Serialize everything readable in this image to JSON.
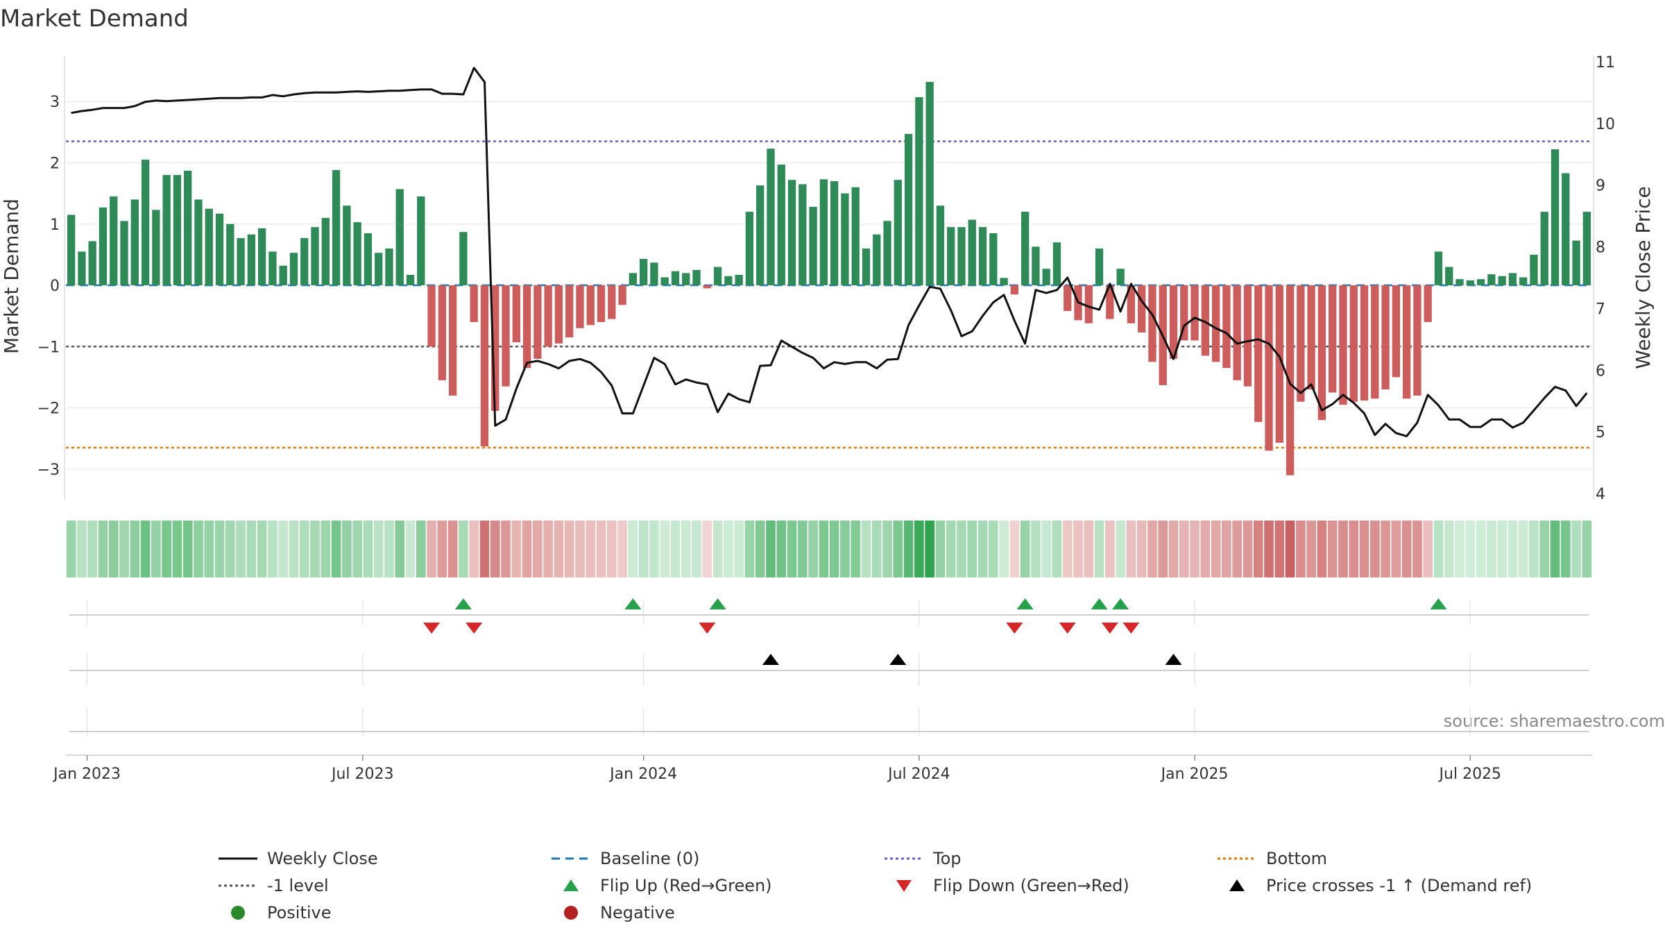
{
  "title": "Market Demand",
  "source": "source: sharemaestro.com",
  "colors": {
    "positive": "#2e8b57",
    "negative": "#cd5c5c",
    "line": "#111111",
    "baseline": "#1f77b4",
    "top": "#6a5acd",
    "bottom": "#e07b00",
    "minus_one": "#555555",
    "flip_up": "#27a04b",
    "flip_down": "#d62728",
    "cross": "#000000",
    "legend_positive": "#2a8a2a",
    "legend_negative": "#b22222",
    "grid": "#e6e6e6"
  },
  "chart_data": {
    "type": "bar+line",
    "title": "Market Demand",
    "ylabel": "Market Demand",
    "y2label": "Weekly Close Price",
    "ylim": [
      -3.5,
      3.75
    ],
    "y2lim": [
      3.9,
      11.1
    ],
    "yticks": [
      "3",
      "2",
      "1",
      "0",
      "−1",
      "−2",
      "−3"
    ],
    "y2ticks": [
      "11",
      "10",
      "9",
      "8",
      "7",
      "6",
      "5",
      "4"
    ],
    "x_ticks": [
      {
        "label": "Jan 2023",
        "week": 2
      },
      {
        "label": "Jul 2023",
        "week": 28
      },
      {
        "label": "Jan 2024",
        "week": 54.5
      },
      {
        "label": "Jul 2024",
        "week": 80.5
      },
      {
        "label": "Jan 2025",
        "week": 106.5
      },
      {
        "label": "Jul 2025",
        "week": 132.5
      }
    ],
    "reference_lines": {
      "top": 2.35,
      "bottom": -2.65,
      "minus_one": -1,
      "baseline": 0
    },
    "demand": [
      1.15,
      0.55,
      0.72,
      1.27,
      1.45,
      1.05,
      1.4,
      2.05,
      1.23,
      1.8,
      1.8,
      1.87,
      1.4,
      1.25,
      1.17,
      1.0,
      0.77,
      0.83,
      0.93,
      0.55,
      0.32,
      0.53,
      0.77,
      0.95,
      1.1,
      1.88,
      1.3,
      1.03,
      0.85,
      0.53,
      0.6,
      1.57,
      0.17,
      1.45,
      -1.0,
      -1.55,
      -1.8,
      0.87,
      -0.6,
      -2.63,
      -2.05,
      -1.65,
      -0.93,
      -1.35,
      -1.2,
      -1.0,
      -0.95,
      -0.85,
      -0.7,
      -0.65,
      -0.6,
      -0.55,
      -0.32,
      0.2,
      0.43,
      0.37,
      0.13,
      0.23,
      0.2,
      0.25,
      -0.05,
      0.3,
      0.15,
      0.17,
      1.2,
      1.63,
      2.23,
      1.97,
      1.72,
      1.65,
      1.28,
      1.73,
      1.7,
      1.5,
      1.6,
      0.6,
      0.83,
      1.05,
      1.72,
      2.47,
      3.07,
      3.32,
      1.3,
      0.95,
      0.95,
      1.07,
      0.95,
      0.85,
      0.12,
      -0.15,
      1.2,
      0.63,
      0.27,
      0.7,
      -0.42,
      -0.57,
      -0.62,
      0.6,
      -0.55,
      0.27,
      -0.62,
      -0.77,
      -1.25,
      -1.63,
      -1.2,
      -0.9,
      -0.9,
      -1.15,
      -1.25,
      -1.35,
      -1.55,
      -1.65,
      -2.23,
      -2.7,
      -2.57,
      -3.1,
      -1.9,
      -1.7,
      -2.2,
      -1.75,
      -1.95,
      -1.9,
      -1.88,
      -1.85,
      -1.7,
      -1.5,
      -1.85,
      -1.8,
      -0.6,
      0.55,
      0.3,
      0.1,
      0.08,
      0.1,
      0.18,
      0.15,
      0.2,
      0.13,
      0.5,
      1.2,
      2.22,
      1.83,
      0.73,
      1.2
    ],
    "weekly_close": [
      10.17,
      10.2,
      10.22,
      10.25,
      10.25,
      10.25,
      10.28,
      10.35,
      10.37,
      10.36,
      10.37,
      10.38,
      10.39,
      10.4,
      10.41,
      10.41,
      10.41,
      10.42,
      10.42,
      10.46,
      10.44,
      10.47,
      10.49,
      10.5,
      10.5,
      10.5,
      10.51,
      10.52,
      10.51,
      10.52,
      10.53,
      10.53,
      10.54,
      10.55,
      10.55,
      10.48,
      10.48,
      10.47,
      10.9,
      10.67,
      5.1,
      5.2,
      5.7,
      6.12,
      6.15,
      6.1,
      6.03,
      6.15,
      6.18,
      6.12,
      5.97,
      5.75,
      5.3,
      5.3,
      5.75,
      6.2,
      6.1,
      5.77,
      5.85,
      5.8,
      5.77,
      5.32,
      5.62,
      5.53,
      5.48,
      6.07,
      6.08,
      6.48,
      6.38,
      6.28,
      6.2,
      6.03,
      6.13,
      6.1,
      6.13,
      6.13,
      6.03,
      6.17,
      6.18,
      6.73,
      7.05,
      7.35,
      7.32,
      6.97,
      6.55,
      6.63,
      6.88,
      7.1,
      7.22,
      6.8,
      6.43,
      7.3,
      7.25,
      7.3,
      7.5,
      7.1,
      7.03,
      6.98,
      7.4,
      6.95,
      7.4,
      7.12,
      6.9,
      6.55,
      6.18,
      6.72,
      6.85,
      6.78,
      6.68,
      6.6,
      6.43,
      6.47,
      6.5,
      6.43,
      6.22,
      5.78,
      5.63,
      5.77,
      5.35,
      5.45,
      5.6,
      5.47,
      5.3,
      4.95,
      5.13,
      4.98,
      4.93,
      5.15,
      5.6,
      5.43,
      5.2,
      5.2,
      5.08,
      5.08,
      5.2,
      5.2,
      5.07,
      5.15,
      5.35,
      5.55,
      5.73,
      5.67,
      5.42,
      5.63
    ],
    "flip_up_weeks": [
      37,
      53,
      61,
      90,
      97,
      99,
      129
    ],
    "flip_down_weeks": [
      34,
      38,
      60,
      89,
      94,
      98,
      100
    ],
    "price_cross_weeks": [
      66,
      78,
      104
    ],
    "legend": [
      {
        "label": "Weekly Close",
        "kind": "line-solid",
        "color_key": "line"
      },
      {
        "label": "Baseline (0)",
        "kind": "line-dash",
        "color_key": "baseline"
      },
      {
        "label": "Top",
        "kind": "line-dot",
        "color_key": "top"
      },
      {
        "label": "Bottom",
        "kind": "line-dot",
        "color_key": "bottom"
      },
      {
        "label": "-1 level",
        "kind": "line-dot",
        "color_key": "minus_one"
      },
      {
        "label": "Flip Up (Red→Green)",
        "kind": "tri-up",
        "color_key": "flip_up"
      },
      {
        "label": "Flip Down (Green→Red)",
        "kind": "tri-down",
        "color_key": "flip_down"
      },
      {
        "label": "Price crosses -1 ↑ (Demand ref)",
        "kind": "tri-up",
        "color_key": "cross"
      },
      {
        "label": "Positive",
        "kind": "dot",
        "color_key": "legend_positive"
      },
      {
        "label": "Negative",
        "kind": "dot",
        "color_key": "legend_negative"
      }
    ]
  }
}
